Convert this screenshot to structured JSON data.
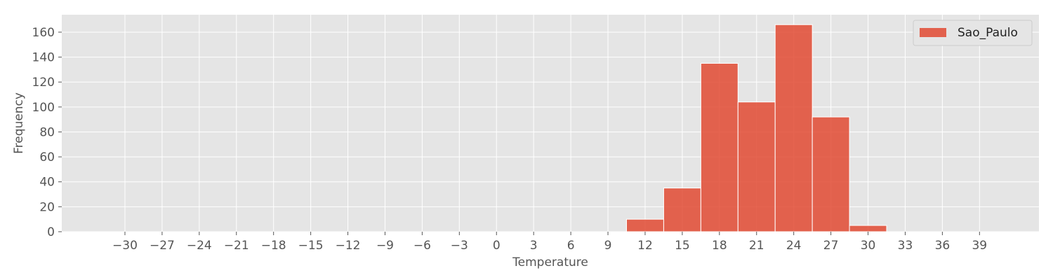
{
  "chart_data": {
    "type": "bar",
    "title": "",
    "xlabel": "Temperature",
    "ylabel": "Frequency",
    "xlim": [
      -35.1,
      43.8
    ],
    "ylim": [
      0,
      174
    ],
    "x_ticks": [
      -30,
      -27,
      -24,
      -21,
      -18,
      -15,
      -12,
      -9,
      -6,
      -3,
      0,
      3,
      6,
      9,
      12,
      15,
      18,
      21,
      24,
      27,
      30,
      33,
      36,
      39
    ],
    "y_ticks": [
      0,
      20,
      40,
      60,
      80,
      100,
      120,
      140,
      160
    ],
    "grid": true,
    "legend_position": "top-right",
    "series": [
      {
        "name": "Sao_Paulo",
        "color": "#E24A33",
        "bins": [
          {
            "start": 10.5,
            "end": 13.5,
            "count": 10
          },
          {
            "start": 13.5,
            "end": 16.5,
            "count": 35
          },
          {
            "start": 16.5,
            "end": 19.5,
            "count": 135
          },
          {
            "start": 19.5,
            "end": 22.5,
            "count": 104
          },
          {
            "start": 22.5,
            "end": 25.5,
            "count": 166
          },
          {
            "start": 25.5,
            "end": 28.5,
            "count": 92
          },
          {
            "start": 28.5,
            "end": 31.5,
            "count": 5
          }
        ]
      }
    ]
  }
}
